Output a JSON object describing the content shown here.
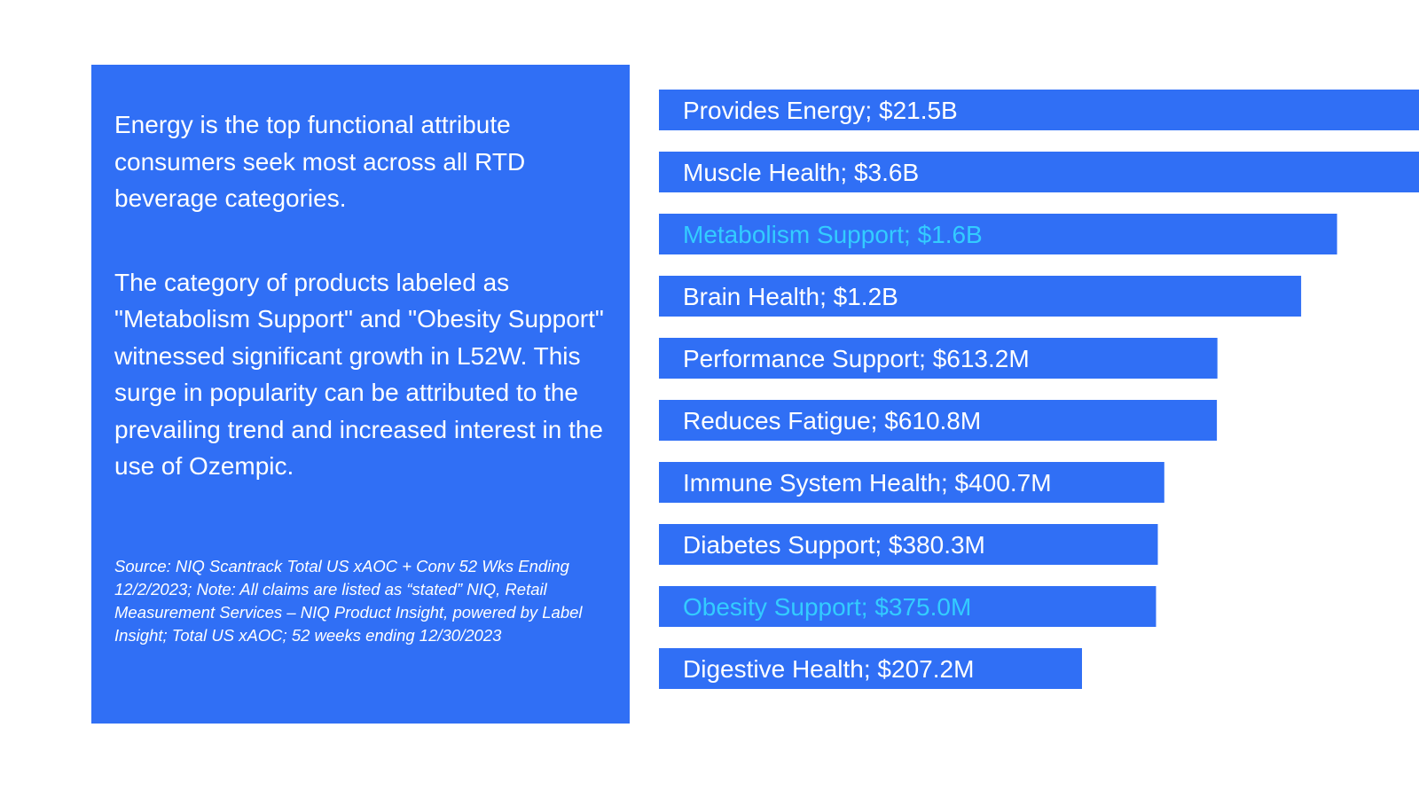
{
  "panel": {
    "paragraph1": "Energy is the top functional attribute consumers seek most across all RTD beverage categories.",
    "paragraph2": "The category of products labeled as \"Metabolism Support\" and \"Obesity Support\" witnessed significant growth in L52W. This surge in popularity can be attributed to the prevailing trend and increased interest in the use of Ozempic.",
    "source": "Source: NIQ Scantrack Total US xAOC + Conv 52 Wks Ending 12/2/2023; Note: All claims are listed as “stated” NIQ, Retail Measurement Services – NIQ Product Insight, powered by Label Insight; Total US xAOC; 52 weeks ending 12/30/2023"
  },
  "colors": {
    "panel": "#306ff5",
    "bar": "#306ff5",
    "label": "#ffffff",
    "highlight_label": "#33ccff"
  },
  "chart_data": {
    "type": "bar",
    "orientation": "horizontal",
    "categories": [
      "Provides Energy",
      "Muscle Health",
      "Metabolism Support",
      "Brain Health",
      "Performance Support",
      "Reduces Fatigue",
      "Immune System Health",
      "Diabetes Support",
      "Obesity Support",
      "Digestive Health"
    ],
    "labels": [
      "Provides Energy; $21.5B",
      "Muscle Health; $3.6B",
      "Metabolism Support; $1.6B",
      "Brain Health; $1.2B",
      "Performance Support; $613.2M",
      "Reduces Fatigue; $610.8M",
      "Immune System Health; $400.7M",
      "Diabetes Support; $380.3M",
      "Obesity Support; $375.0M",
      "Digestive Health; $207.2M"
    ],
    "values": [
      21.5,
      3.6,
      1.6,
      1.2,
      0.6132,
      0.6108,
      0.4007,
      0.3803,
      0.375,
      0.2072
    ],
    "value_unit": "$B",
    "value_scale": "log",
    "highlighted": [
      "Metabolism Support",
      "Obesity Support"
    ],
    "legend": "none",
    "grid": false
  }
}
